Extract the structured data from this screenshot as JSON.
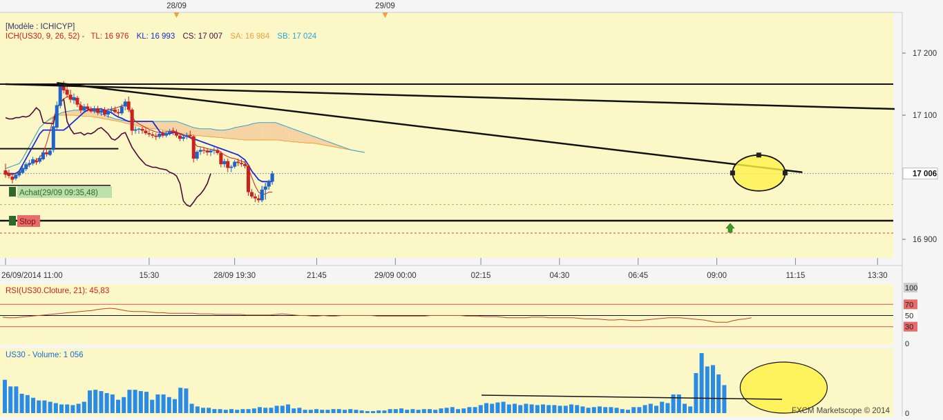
{
  "colors": {
    "panel_bg": "#fbf7c6",
    "page_bg": "#f5f5f5",
    "bull": "#1f64c8",
    "bear": "#cc1f1f",
    "tenkan": "#cc1f1f",
    "kijun": "#1a2bd6",
    "chikou": "#4a0a3a",
    "cloud_bull": "#c8e4cf",
    "cloud_bear": "#f6d3a2",
    "senkou_a": "#f0a040",
    "senkou_b": "#2aa6d8",
    "rsi_line": "#b84a1a",
    "volume": "#2b8ce6",
    "highlight": "#fff24a"
  },
  "top_axis": {
    "markers": [
      {
        "label": "28/09",
        "slot": 50
      },
      {
        "label": "29/09",
        "slot": 111
      }
    ]
  },
  "legend": {
    "model": "[Modèle : ICHICYP]",
    "ich": "ICH(US30, 9, 26, 52) -",
    "tl": "TL: 16 976",
    "kl": "KL: 16 993",
    "cs": "CS: 17 007",
    "sa": "SA: 16 984",
    "sb": "SB: 17 024"
  },
  "price_axis": {
    "ticks": [
      "17 200",
      "17 100",
      "16 900"
    ],
    "current": "17 006"
  },
  "orders": {
    "buy_label": "Achat(29/09 09:35,48)",
    "stop_label": "Stop"
  },
  "time_axis": {
    "labels": [
      {
        "label": "26/09/2014 11:00",
        "slot": 0
      },
      {
        "label": "15:30",
        "slot": 42
      },
      {
        "label": "28/09 19:30",
        "slot": 67
      },
      {
        "label": "21:45",
        "slot": 91
      },
      {
        "label": "29/09 00:00",
        "slot": 114
      },
      {
        "label": "02:15",
        "slot": 139
      },
      {
        "label": "04:30",
        "slot": 162
      },
      {
        "label": "06:45",
        "slot": 185
      },
      {
        "label": "09:00",
        "slot": 208
      },
      {
        "label": "11:15",
        "slot": 231
      },
      {
        "label": "13:30",
        "slot": 255
      }
    ]
  },
  "rsi": {
    "label": "RSI(US30.Cloture, 21): 45,83",
    "ticks": [
      "100",
      "70",
      "50",
      "30",
      "0"
    ]
  },
  "volume": {
    "label": "US30 - Volume: 1 056",
    "ticks": [
      "0"
    ]
  },
  "watermark": "FXCM Marketscope © 2014",
  "chart_data": {
    "type": "candlestick",
    "instrument": "US30",
    "price_range": [
      16880,
      17230
    ],
    "candles": [
      [
        17011,
        17022,
        16999,
        17004
      ],
      [
        17006,
        17012,
        16998,
        17002
      ],
      [
        17001,
        17004,
        16990,
        16996
      ],
      [
        16998,
        17008,
        16995,
        17004
      ],
      [
        17003,
        17012,
        17000,
        17009
      ],
      [
        17007,
        17018,
        17005,
        17015
      ],
      [
        17013,
        17024,
        17010,
        17021
      ],
      [
        17020,
        17028,
        17016,
        17023
      ],
      [
        17022,
        17033,
        17019,
        17029
      ],
      [
        17027,
        17031,
        17020,
        17024
      ],
      [
        17025,
        17035,
        17022,
        17031
      ],
      [
        17029,
        17043,
        17027,
        17040
      ],
      [
        17040,
        17046,
        17033,
        17037
      ],
      [
        17036,
        17045,
        17034,
        17043
      ],
      [
        17044,
        17086,
        17040,
        17082
      ],
      [
        17080,
        17122,
        17076,
        17116
      ],
      [
        17115,
        17152,
        17111,
        17146
      ],
      [
        17147,
        17155,
        17135,
        17140
      ],
      [
        17141,
        17150,
        17128,
        17133
      ],
      [
        17133,
        17141,
        17120,
        17125
      ],
      [
        17124,
        17135,
        17118,
        17129
      ],
      [
        17128,
        17131,
        17113,
        17117
      ],
      [
        17116,
        17122,
        17103,
        17108
      ],
      [
        17108,
        17118,
        17103,
        17114
      ],
      [
        17114,
        17119,
        17106,
        17110
      ],
      [
        17110,
        17114,
        17104,
        17106
      ],
      [
        17106,
        17115,
        17103,
        17111
      ],
      [
        17111,
        17115,
        17100,
        17104
      ],
      [
        17104,
        17112,
        17099,
        17108
      ],
      [
        17108,
        17113,
        17098,
        17101
      ],
      [
        17101,
        17111,
        17096,
        17107
      ],
      [
        17107,
        17114,
        17102,
        17109
      ],
      [
        17109,
        17114,
        17103,
        17105
      ],
      [
        17105,
        17110,
        17098,
        17103
      ],
      [
        17103,
        17118,
        17100,
        17114
      ],
      [
        17114,
        17126,
        17108,
        17122
      ],
      [
        17122,
        17130,
        17105,
        17109
      ],
      [
        17109,
        17112,
        17068,
        17075
      ],
      [
        17075,
        17082,
        17070,
        17077
      ],
      [
        17077,
        17080,
        17070,
        17078
      ],
      [
        17078,
        17081,
        17070,
        17075
      ],
      [
        17075,
        17079,
        17068,
        17071
      ],
      [
        17071,
        17076,
        17065,
        17069
      ],
      [
        17069,
        17073,
        17063,
        17067
      ],
      [
        17067,
        17071,
        17060,
        17065
      ],
      [
        17065,
        17073,
        17062,
        17070
      ],
      [
        17070,
        17075,
        17064,
        17067
      ],
      [
        17067,
        17074,
        17064,
        17071
      ],
      [
        17071,
        17078,
        17067,
        17074
      ],
      [
        17074,
        17080,
        17068,
        17072
      ],
      [
        17072,
        17077,
        17064,
        17067
      ],
      [
        17067,
        17071,
        17058,
        17062
      ],
      [
        17062,
        17069,
        17058,
        17065
      ],
      [
        17065,
        17072,
        17061,
        17068
      ],
      [
        17068,
        17075,
        17062,
        17066
      ],
      [
        17066,
        17068,
        17024,
        17030
      ],
      [
        17030,
        17044,
        17027,
        17041
      ],
      [
        17041,
        17049,
        17036,
        17044
      ],
      [
        17044,
        17048,
        17038,
        17043
      ],
      [
        17043,
        17047,
        17035,
        17040
      ],
      [
        17040,
        17046,
        17034,
        17043
      ],
      [
        17043,
        17048,
        17037,
        17044
      ],
      [
        17044,
        17048,
        17036,
        17039
      ],
      [
        17039,
        17042,
        17016,
        17021
      ],
      [
        17021,
        17030,
        17016,
        17026
      ],
      [
        17026,
        17030,
        17008,
        17015
      ],
      [
        17015,
        17020,
        17008,
        17017
      ],
      [
        17017,
        17028,
        17014,
        17025
      ],
      [
        17025,
        17030,
        17018,
        17023
      ],
      [
        17023,
        17029,
        17017,
        17021
      ],
      [
        17021,
        17026,
        17014,
        17018
      ],
      [
        17018,
        17021,
        16970,
        16976
      ],
      [
        16976,
        16981,
        16966,
        16969
      ],
      [
        16969,
        16974,
        16960,
        16966
      ],
      [
        16966,
        16972,
        16959,
        16963
      ],
      [
        16963,
        16986,
        16960,
        16980
      ],
      [
        16980,
        16991,
        16964,
        16985
      ],
      [
        16985,
        16996,
        16980,
        16993
      ],
      [
        16993,
        17010,
        16988,
        17006
      ]
    ],
    "tenkan": [
      17010,
      17006,
      17004,
      17006,
      17009,
      17012,
      17016,
      17020,
      17025,
      17028,
      17032,
      17040,
      17055,
      17075,
      17095,
      17110,
      17120,
      17126,
      17130,
      17129,
      17126,
      17121,
      17116,
      17112,
      17110,
      17109,
      17108,
      17107,
      17107,
      17108,
      17109,
      17110,
      17111,
      17113,
      17115,
      17117,
      17112,
      17098,
      17090,
      17086,
      17083,
      17080,
      17077,
      17075,
      17073,
      17072,
      17072,
      17073,
      17074,
      17075,
      17073,
      17070,
      17067,
      17066,
      17065,
      17057,
      17050,
      17049,
      17048,
      17046,
      17045,
      17044,
      17043,
      17040,
      17036,
      17033,
      17031,
      17030,
      17028,
      17026,
      17024,
      17015,
      17000,
      16986,
      16976,
      16972,
      16973,
      16976,
      16976
    ],
    "kijun": [
      17006,
      17006,
      17006,
      17006,
      17010,
      17020,
      17030,
      17040,
      17050,
      17060,
      17070,
      17076,
      17076,
      17076,
      17076,
      17076,
      17076,
      17076,
      17080,
      17085,
      17090,
      17095,
      17100,
      17105,
      17108,
      17110,
      17110,
      17110,
      17110,
      17108,
      17106,
      17104,
      17100,
      17097,
      17095,
      17092,
      17090,
      17090,
      17090,
      17090,
      17090,
      17090,
      17090,
      17090,
      17082,
      17074,
      17070,
      17070,
      17070,
      17072,
      17072,
      17070,
      17068,
      17066,
      17064,
      17062,
      17060,
      17058,
      17056,
      17054,
      17052,
      17050,
      17048,
      17046,
      17044,
      17042,
      17040,
      17038,
      17036,
      17032,
      17028,
      17020,
      17010,
      17003,
      16996,
      16993,
      16993,
      16993,
      16993
    ],
    "chikou": [
      17096,
      17094,
      17094,
      17096,
      17096,
      17098,
      17097,
      17099,
      17105,
      17112,
      17107,
      17088,
      17087,
      17087,
      17086,
      17112,
      17120,
      17126,
      17090,
      17078,
      17070,
      17071,
      17072,
      17068,
      17071,
      17070,
      17073,
      17078,
      17080,
      17075,
      17070,
      17062,
      17060,
      17064,
      17070,
      17072,
      17060,
      17048,
      17040,
      17032,
      17026,
      17020,
      17018,
      17016,
      17016,
      17014,
      17013,
      17012,
      17008,
      17006,
      17002,
      16990,
      16962,
      16955,
      16953,
      16960,
      16968,
      16973,
      16980,
      16990,
      17006
    ],
    "senkou_a": [
      17014,
      17016,
      17018,
      17020,
      17022,
      17030,
      17040,
      17050,
      17060,
      17070,
      17080,
      17085,
      17090,
      17095,
      17098,
      17100,
      17100,
      17100,
      17100,
      17100,
      17100,
      17099,
      17099,
      17098,
      17098,
      17098,
      17097,
      17096,
      17095,
      17094,
      17093,
      17092,
      17091,
      17090,
      17089,
      17087,
      17086,
      17085,
      17084,
      17082,
      17081,
      17080,
      17079,
      17078,
      17078,
      17077,
      17076,
      17075,
      17074,
      17072,
      17072,
      17071,
      17070,
      17069,
      17069,
      17068,
      17067,
      17067,
      17066,
      17066,
      17065,
      17065,
      17064,
      17064,
      17063,
      17063,
      17062,
      17062,
      17061,
      17061,
      17060,
      17060,
      17060,
      17060,
      17060,
      17060,
      17060,
      17060,
      17060,
      17060,
      17060,
      17059,
      17058,
      17058,
      17057,
      17057,
      17056,
      17056,
      17055,
      17055,
      17055,
      17054,
      17053,
      17052,
      17051,
      17050,
      17049,
      17048,
      17047,
      17046,
      17045,
      17044,
      17043,
      17042,
      17041,
      17040
    ],
    "senkou_b": [
      17014,
      17016,
      17018,
      17020,
      17022,
      17030,
      17040,
      17050,
      17060,
      17070,
      17080,
      17085,
      17090,
      17093,
      17096,
      17100,
      17103,
      17105,
      17106,
      17107,
      17108,
      17108,
      17108,
      17108,
      17108,
      17108,
      17106,
      17104,
      17102,
      17100,
      17098,
      17096,
      17094,
      17093,
      17092,
      17091,
      17090,
      17090,
      17090,
      17090,
      17090,
      17090,
      17090,
      17090,
      17090,
      17090,
      17090,
      17090,
      17090,
      17090,
      17090,
      17088,
      17086,
      17084,
      17082,
      17080,
      17079,
      17078,
      17078,
      17078,
      17078,
      17077,
      17076,
      17076,
      17076,
      17077,
      17078,
      17080,
      17081,
      17082,
      17083,
      17084,
      17086,
      17087,
      17088,
      17088,
      17088,
      17088,
      17088,
      17088,
      17086,
      17084,
      17082,
      17080,
      17078,
      17076,
      17074,
      17072,
      17070,
      17068,
      17066,
      17064,
      17062,
      17060,
      17058,
      17056,
      17054,
      17052,
      17050,
      17048,
      17046,
      17044,
      17043,
      17042,
      17041,
      17040
    ],
    "levels": {
      "range_top": 17150,
      "buy": 16987,
      "stop": 16930,
      "stop_dashed": 16910,
      "dashed_green": 16956,
      "dashed_blue": 17006,
      "black_left": 17046
    },
    "trendlines": [
      {
        "from": [
          15,
          17152
        ],
        "to": [
          233,
          17008
        ]
      },
      {
        "from": [
          0,
          17150
        ],
        "to": [
          260,
          17110
        ]
      }
    ],
    "ellipse_center": [
      17008,
      232
    ],
    "rsi_series": [
      47,
      46,
      46,
      47,
      48,
      49,
      50,
      51,
      52,
      53,
      54,
      55,
      56,
      57,
      58,
      59,
      61,
      62,
      63,
      62,
      60,
      58,
      57,
      57,
      57,
      56,
      55,
      55,
      54,
      54,
      54,
      54,
      54,
      53,
      53,
      53,
      52,
      52,
      52,
      52,
      52,
      51,
      51,
      51,
      51,
      51,
      52,
      53,
      52,
      51,
      50,
      50,
      49,
      49,
      50,
      49,
      49,
      50,
      50,
      50,
      50,
      50,
      50,
      49,
      49,
      49,
      49,
      49,
      49,
      49,
      49,
      49,
      50,
      50,
      50,
      50,
      50,
      50,
      49,
      49,
      49,
      48,
      48,
      48,
      47,
      46,
      46,
      46,
      46,
      47,
      47,
      47,
      46,
      46,
      46,
      46,
      46,
      45,
      44,
      44,
      44,
      43,
      42,
      42,
      43,
      42,
      41,
      41,
      42,
      43,
      44,
      45,
      46,
      46,
      46,
      45,
      44,
      43,
      42,
      40,
      38,
      38,
      38,
      41,
      43,
      44,
      46
    ],
    "volume_values": [
      50,
      40,
      40,
      29,
      27,
      23,
      19,
      19,
      17,
      15,
      13,
      13,
      12,
      14,
      17,
      34,
      35,
      33,
      30,
      28,
      20,
      24,
      35,
      35,
      33,
      32,
      20,
      28,
      28,
      24,
      21,
      38,
      37,
      14,
      10,
      8,
      8,
      6,
      6,
      5,
      6,
      5,
      6,
      6,
      7,
      9,
      8,
      8,
      11,
      11,
      13,
      7,
      8,
      5,
      5,
      6,
      5,
      5,
      6,
      6,
      5,
      6,
      5,
      4,
      3,
      3,
      4,
      4,
      6,
      6,
      7,
      5,
      6,
      5,
      6,
      6,
      5,
      7,
      8,
      9,
      6,
      7,
      9,
      9,
      12,
      15,
      14,
      16,
      17,
      13,
      14,
      12,
      14,
      13,
      12,
      13,
      12,
      12,
      11,
      11,
      13,
      12,
      10,
      8,
      9,
      10,
      9,
      9,
      8,
      6,
      5,
      9,
      9,
      12,
      14,
      11,
      17,
      15,
      28,
      28,
      14,
      10,
      60,
      90,
      70,
      72,
      58,
      42
    ],
    "rsi_ticks": [
      100,
      70,
      50,
      30,
      0
    ],
    "price_ticks": [
      17200,
      17100,
      16900
    ]
  }
}
